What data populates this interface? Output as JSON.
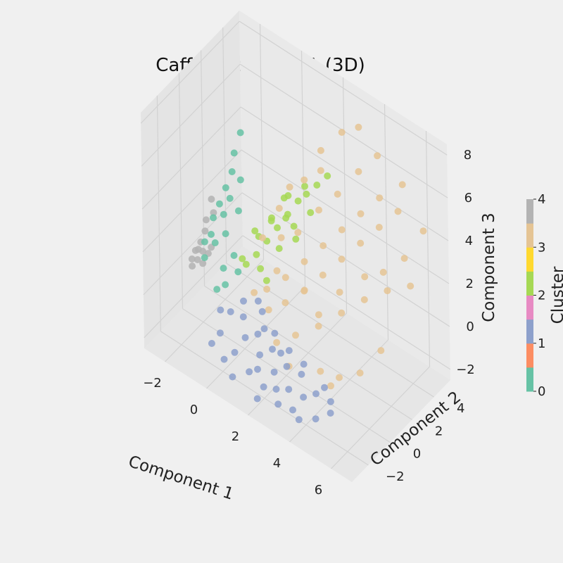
{
  "chart_data": {
    "type": "scatter",
    "title": "Caffe_Order - PCA (3D)",
    "xlabel": "Component 1",
    "ylabel": "Component 2",
    "zlabel": "Component 3",
    "x_ticks": [
      "−2",
      "0",
      "2",
      "4",
      "6"
    ],
    "y_ticks": [
      "−2",
      "0",
      "2",
      "4"
    ],
    "z_ticks": [
      "−2",
      "0",
      "2",
      "4",
      "6",
      "8"
    ],
    "xlim": [
      -3,
      7
    ],
    "ylim": [
      -3.5,
      5.5
    ],
    "zlim": [
      -2.5,
      8.5
    ],
    "grid": true,
    "colorbar": {
      "label": "Cluster",
      "ticks": [
        "0",
        "1",
        "2",
        "3",
        "4"
      ],
      "colors": [
        "#66c2a5",
        "#fc8d62",
        "#8da0cb",
        "#e78ac3",
        "#a6d854",
        "#ffd92f",
        "#e5c494",
        "#b3b3b3"
      ]
    },
    "cluster_colors": {
      "0": "#66c2a5",
      "1": "#8da0cb",
      "2": "#a6d854",
      "3": "#e5c494",
      "4": "#b3b3b3"
    },
    "points": [
      {
        "x": -2.6,
        "y": 0.5,
        "z": 0.2,
        "c": 4
      },
      {
        "x": -2.5,
        "y": 0.8,
        "z": 0.5,
        "c": 4
      },
      {
        "x": -2.4,
        "y": 0.3,
        "z": 0.0,
        "c": 4
      },
      {
        "x": -2.5,
        "y": 1.2,
        "z": 0.8,
        "c": 4
      },
      {
        "x": -2.3,
        "y": 0.6,
        "z": 0.3,
        "c": 4
      },
      {
        "x": -2.6,
        "y": 1.5,
        "z": 1.1,
        "c": 4
      },
      {
        "x": -2.2,
        "y": 0.9,
        "z": 0.1,
        "c": 4
      },
      {
        "x": -2.5,
        "y": 0.0,
        "z": -0.2,
        "c": 4
      },
      {
        "x": -2.4,
        "y": 1.8,
        "z": 1.4,
        "c": 4
      },
      {
        "x": -2.3,
        "y": 0.2,
        "z": 0.6,
        "c": 4
      },
      {
        "x": -2.6,
        "y": 2.0,
        "z": 1.8,
        "c": 4
      },
      {
        "x": -2.2,
        "y": 0.4,
        "z": -0.1,
        "c": 4
      },
      {
        "x": -2.1,
        "y": 1.0,
        "z": 0.4,
        "c": 4
      },
      {
        "x": -2.4,
        "y": -0.2,
        "z": 0.3,
        "c": 4
      },
      {
        "x": -2.2,
        "y": 1.4,
        "z": 1.5,
        "c": 0
      },
      {
        "x": -2.1,
        "y": 1.8,
        "z": 2.0,
        "c": 0
      },
      {
        "x": -2.0,
        "y": 2.2,
        "z": 2.6,
        "c": 0
      },
      {
        "x": -2.1,
        "y": 1.0,
        "z": 1.0,
        "c": 0
      },
      {
        "x": -1.9,
        "y": 2.6,
        "z": 3.2,
        "c": 0
      },
      {
        "x": -2.0,
        "y": 3.0,
        "z": 3.8,
        "c": 0
      },
      {
        "x": -1.8,
        "y": 1.6,
        "z": 1.8,
        "c": 0
      },
      {
        "x": -1.9,
        "y": 3.4,
        "z": 4.6,
        "c": 0
      },
      {
        "x": -2.2,
        "y": 0.6,
        "z": 0.8,
        "c": 0
      },
      {
        "x": -1.7,
        "y": 2.0,
        "z": 2.4,
        "c": 0
      },
      {
        "x": -2.0,
        "y": 0.2,
        "z": 0.4,
        "c": 0
      },
      {
        "x": -1.8,
        "y": 0.8,
        "z": 0.9,
        "c": 0
      },
      {
        "x": -1.6,
        "y": 2.8,
        "z": 2.9,
        "c": 0
      },
      {
        "x": -1.5,
        "y": 1.2,
        "z": 1.3,
        "c": 0
      },
      {
        "x": -1.2,
        "y": 0.4,
        "z": 0.3,
        "c": 0
      },
      {
        "x": -1.0,
        "y": 1.0,
        "z": 0.7,
        "c": 0
      },
      {
        "x": -0.8,
        "y": -0.2,
        "z": 0.1,
        "c": 0
      },
      {
        "x": -1.4,
        "y": 2.2,
        "z": 1.9,
        "c": 0
      },
      {
        "x": -0.6,
        "y": 0.6,
        "z": 0.4,
        "c": 0
      },
      {
        "x": -1.1,
        "y": -0.4,
        "z": -0.2,
        "c": 0
      },
      {
        "x": 0.2,
        "y": 0.8,
        "z": 1.6,
        "c": 2
      },
      {
        "x": 0.5,
        "y": 1.2,
        "z": 2.2,
        "c": 2
      },
      {
        "x": 0.8,
        "y": 1.6,
        "z": 2.8,
        "c": 2
      },
      {
        "x": 1.1,
        "y": 2.0,
        "z": 3.4,
        "c": 2
      },
      {
        "x": 1.4,
        "y": 2.4,
        "z": 4.0,
        "c": 2
      },
      {
        "x": 1.7,
        "y": 2.6,
        "z": 4.4,
        "c": 2
      },
      {
        "x": 2.0,
        "y": 3.0,
        "z": 4.8,
        "c": 2
      },
      {
        "x": 0.0,
        "y": 1.4,
        "z": 2.0,
        "c": 2
      },
      {
        "x": 0.6,
        "y": 0.4,
        "z": 1.4,
        "c": 2
      },
      {
        "x": 0.9,
        "y": 2.2,
        "z": 3.0,
        "c": 2
      },
      {
        "x": 1.2,
        "y": 1.0,
        "z": 2.4,
        "c": 2
      },
      {
        "x": 1.5,
        "y": 1.8,
        "z": 3.2,
        "c": 2
      },
      {
        "x": 0.3,
        "y": 2.0,
        "z": 2.6,
        "c": 2
      },
      {
        "x": -0.2,
        "y": 0.6,
        "z": 1.0,
        "c": 2
      },
      {
        "x": 0.7,
        "y": 2.8,
        "z": 3.6,
        "c": 2
      },
      {
        "x": 1.0,
        "y": 0.2,
        "z": 1.2,
        "c": 2
      },
      {
        "x": 2.3,
        "y": 3.4,
        "z": 5.2,
        "c": 2
      },
      {
        "x": 1.8,
        "y": 1.4,
        "z": 3.0,
        "c": 2
      },
      {
        "x": -0.4,
        "y": 1.8,
        "z": 1.8,
        "c": 2
      },
      {
        "x": 0.4,
        "y": 3.0,
        "z": 3.2,
        "c": 2
      },
      {
        "x": 1.3,
        "y": 3.2,
        "z": 4.2,
        "c": 2
      },
      {
        "x": 2.1,
        "y": 2.2,
        "z": 4.0,
        "c": 2
      },
      {
        "x": -0.6,
        "y": 1.0,
        "z": 0.8,
        "c": 2
      },
      {
        "x": 0.1,
        "y": 2.4,
        "z": 2.4,
        "c": 2
      },
      {
        "x": 0.2,
        "y": -1.6,
        "z": 0.2,
        "c": 1
      },
      {
        "x": 0.6,
        "y": -1.2,
        "z": 0.0,
        "c": 1
      },
      {
        "x": 1.0,
        "y": -1.8,
        "z": -0.4,
        "c": 1
      },
      {
        "x": 1.4,
        "y": -1.4,
        "z": -0.2,
        "c": 1
      },
      {
        "x": 1.8,
        "y": -2.0,
        "z": -0.6,
        "c": 1
      },
      {
        "x": 2.2,
        "y": -1.6,
        "z": -0.3,
        "c": 1
      },
      {
        "x": 2.6,
        "y": -2.2,
        "z": -0.8,
        "c": 1
      },
      {
        "x": 3.0,
        "y": -1.8,
        "z": -0.5,
        "c": 1
      },
      {
        "x": 3.4,
        "y": -2.4,
        "z": -1.0,
        "c": 1
      },
      {
        "x": 0.4,
        "y": -0.8,
        "z": 0.4,
        "c": 1
      },
      {
        "x": 0.8,
        "y": -2.4,
        "z": -0.9,
        "c": 1
      },
      {
        "x": 1.2,
        "y": -0.6,
        "z": 0.3,
        "c": 1
      },
      {
        "x": 1.6,
        "y": -2.6,
        "z": -1.2,
        "c": 1
      },
      {
        "x": 2.0,
        "y": -1.0,
        "z": 0.0,
        "c": 1
      },
      {
        "x": 2.4,
        "y": -2.8,
        "z": -1.3,
        "c": 1
      },
      {
        "x": 2.8,
        "y": -1.2,
        "z": -0.2,
        "c": 1
      },
      {
        "x": 3.2,
        "y": -3.0,
        "z": -1.5,
        "c": 1
      },
      {
        "x": 3.6,
        "y": -1.6,
        "z": -0.6,
        "c": 1
      },
      {
        "x": 4.0,
        "y": -2.2,
        "z": -1.1,
        "c": 1
      },
      {
        "x": 4.4,
        "y": -1.8,
        "z": -0.9,
        "c": 1
      },
      {
        "x": 4.8,
        "y": -2.6,
        "z": -1.4,
        "c": 1
      },
      {
        "x": 5.2,
        "y": -2.0,
        "z": -1.2,
        "c": 1
      },
      {
        "x": 0.0,
        "y": -2.2,
        "z": -0.6,
        "c": 1
      },
      {
        "x": -0.4,
        "y": -1.4,
        "z": -0.2,
        "c": 1
      },
      {
        "x": 1.0,
        "y": -3.0,
        "z": -1.6,
        "c": 1
      },
      {
        "x": 1.9,
        "y": -2.4,
        "z": -1.0,
        "c": 1
      },
      {
        "x": 2.9,
        "y": -2.6,
        "z": -1.2,
        "c": 1
      },
      {
        "x": 3.8,
        "y": -2.8,
        "z": -1.5,
        "c": 1
      },
      {
        "x": 0.5,
        "y": -2.8,
        "z": -1.2,
        "c": 1
      },
      {
        "x": 1.5,
        "y": -1.0,
        "z": -0.1,
        "c": 1
      },
      {
        "x": 2.5,
        "y": -1.4,
        "z": -0.4,
        "c": 1
      },
      {
        "x": 3.5,
        "y": -1.2,
        "z": -0.4,
        "c": 1
      },
      {
        "x": 4.6,
        "y": -1.4,
        "z": -0.7,
        "c": 1
      },
      {
        "x": -0.2,
        "y": -2.6,
        "z": -1.0,
        "c": 1
      },
      {
        "x": 0.9,
        "y": -0.4,
        "z": 0.5,
        "c": 1
      },
      {
        "x": 2.3,
        "y": -3.2,
        "z": -1.7,
        "c": 1
      },
      {
        "x": 5.0,
        "y": -1.6,
        "z": -1.0,
        "c": 1
      },
      {
        "x": 4.2,
        "y": -3.0,
        "z": -1.6,
        "c": 1
      },
      {
        "x": 1.0,
        "y": 0.2,
        "z": 0.8,
        "c": 3
      },
      {
        "x": 1.6,
        "y": 0.8,
        "z": 1.4,
        "c": 3
      },
      {
        "x": 2.2,
        "y": 1.4,
        "z": 2.2,
        "c": 3
      },
      {
        "x": 2.8,
        "y": 2.0,
        "z": 3.0,
        "c": 3
      },
      {
        "x": 3.4,
        "y": 2.6,
        "z": 3.8,
        "c": 3
      },
      {
        "x": 4.0,
        "y": 3.2,
        "z": 4.6,
        "c": 3
      },
      {
        "x": 4.6,
        "y": 3.8,
        "z": 5.4,
        "c": 3
      },
      {
        "x": 1.4,
        "y": -0.4,
        "z": 0.4,
        "c": 3
      },
      {
        "x": 2.0,
        "y": 0.0,
        "z": 0.9,
        "c": 3
      },
      {
        "x": 2.6,
        "y": 0.6,
        "z": 1.5,
        "c": 3
      },
      {
        "x": 3.2,
        "y": 1.2,
        "z": 2.3,
        "c": 3
      },
      {
        "x": 3.8,
        "y": 1.8,
        "z": 3.1,
        "c": 3
      },
      {
        "x": 4.4,
        "y": 2.4,
        "z": 3.9,
        "c": 3
      },
      {
        "x": 5.0,
        "y": 3.0,
        "z": 4.7,
        "c": 3
      },
      {
        "x": 5.6,
        "y": 3.6,
        "z": 5.5,
        "c": 3
      },
      {
        "x": 1.8,
        "y": 1.6,
        "z": 3.2,
        "c": 3
      },
      {
        "x": 2.4,
        "y": 2.4,
        "z": 4.2,
        "c": 3
      },
      {
        "x": 3.0,
        "y": 3.0,
        "z": 5.0,
        "c": 3
      },
      {
        "x": 3.6,
        "y": 3.8,
        "z": 6.0,
        "c": 3
      },
      {
        "x": 4.2,
        "y": 4.4,
        "z": 6.8,
        "c": 3
      },
      {
        "x": 2.8,
        "y": -0.6,
        "z": 0.2,
        "c": 3
      },
      {
        "x": 3.6,
        "y": 0.0,
        "z": 0.8,
        "c": 3
      },
      {
        "x": 4.4,
        "y": 0.6,
        "z": 1.6,
        "c": 3
      },
      {
        "x": 5.2,
        "y": 1.2,
        "z": 2.4,
        "c": 3
      },
      {
        "x": 6.0,
        "y": 1.8,
        "z": 3.0,
        "c": 3
      },
      {
        "x": 6.4,
        "y": 0.4,
        "z": 1.2,
        "c": 3
      },
      {
        "x": 5.8,
        "y": -0.4,
        "z": 0.2,
        "c": 3
      },
      {
        "x": 5.0,
        "y": -0.8,
        "z": -0.3,
        "c": 3
      },
      {
        "x": 4.2,
        "y": -1.0,
        "z": -0.4,
        "c": 3
      },
      {
        "x": 1.2,
        "y": 1.2,
        "z": 2.8,
        "c": 3
      },
      {
        "x": 1.6,
        "y": 2.6,
        "z": 5.0,
        "c": 3
      },
      {
        "x": 2.0,
        "y": 3.4,
        "z": 6.2,
        "c": 3
      },
      {
        "x": 2.6,
        "y": 4.2,
        "z": 7.0,
        "c": 3
      },
      {
        "x": 0.6,
        "y": -0.2,
        "z": 0.6,
        "c": 3
      },
      {
        "x": 0.8,
        "y": 1.8,
        "z": 3.6,
        "c": 3
      },
      {
        "x": 3.2,
        "y": 4.6,
        "z": 7.4,
        "c": 3
      },
      {
        "x": 5.4,
        "y": 4.4,
        "z": 6.2,
        "c": 3
      },
      {
        "x": 6.2,
        "y": 3.0,
        "z": 4.0,
        "c": 3
      },
      {
        "x": 6.8,
        "y": 2.4,
        "z": 3.4,
        "c": 3
      },
      {
        "x": 2.2,
        "y": -1.2,
        "z": -0.2,
        "c": 3
      },
      {
        "x": 3.0,
        "y": -1.6,
        "z": -0.6,
        "c": 3
      },
      {
        "x": 4.8,
        "y": -1.2,
        "z": -0.6,
        "c": 3
      },
      {
        "x": 1.4,
        "y": 0.4,
        "z": 1.8,
        "c": 3
      },
      {
        "x": 2.4,
        "y": 1.0,
        "z": 1.2,
        "c": 3
      },
      {
        "x": 3.4,
        "y": 0.4,
        "z": 1.0,
        "c": 3
      },
      {
        "x": 4.0,
        "y": 1.2,
        "z": 2.0,
        "c": 3
      },
      {
        "x": 4.8,
        "y": 2.0,
        "z": 2.8,
        "c": 3
      },
      {
        "x": 5.6,
        "y": 2.2,
        "z": 3.4,
        "c": 3
      },
      {
        "x": 1.0,
        "y": 2.4,
        "z": 4.4,
        "c": 3
      },
      {
        "x": 0.4,
        "y": 1.0,
        "z": 2.4,
        "c": 3
      },
      {
        "x": 2.2,
        "y": 3.0,
        "z": 5.6,
        "c": 3
      },
      {
        "x": 6.6,
        "y": 4.0,
        "z": 5.0,
        "c": 3
      }
    ]
  }
}
